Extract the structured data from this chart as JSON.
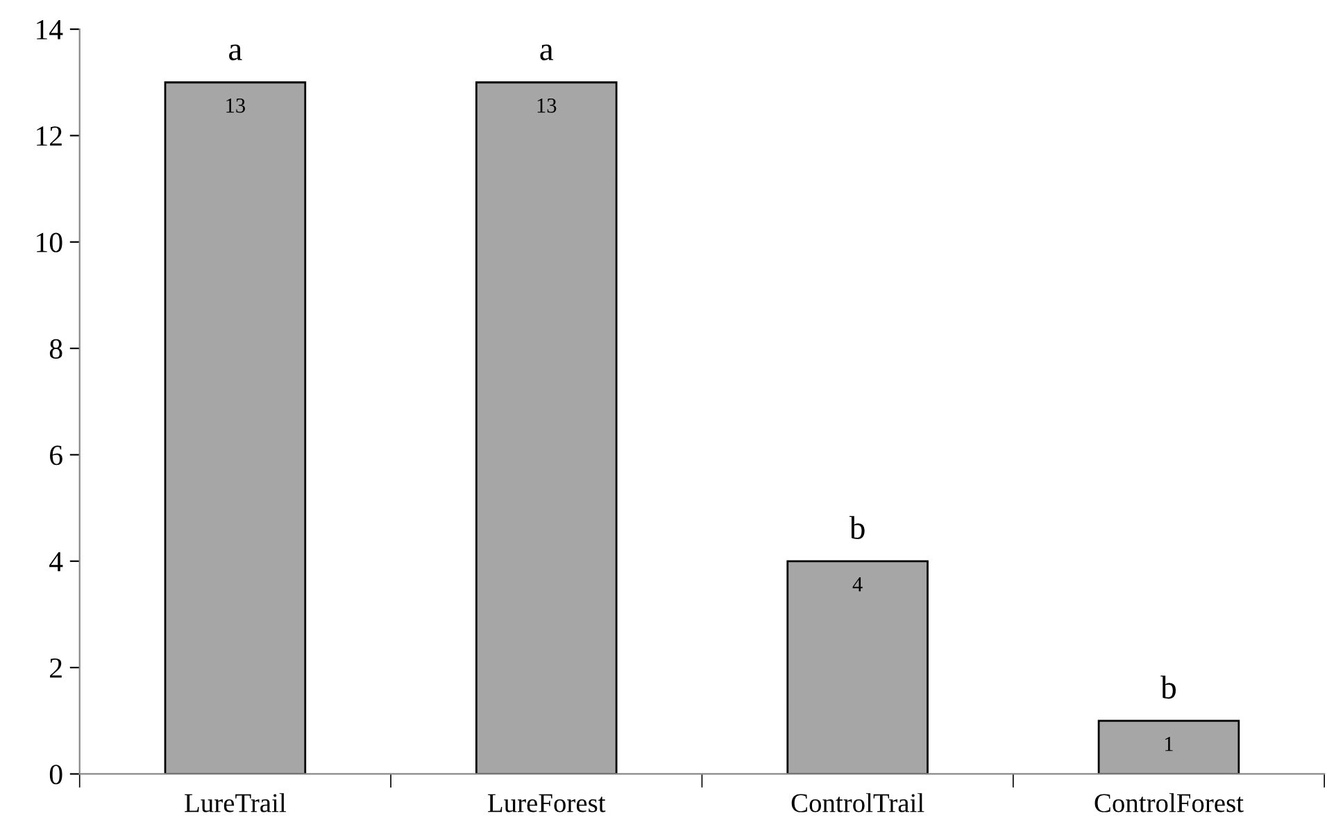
{
  "chart_data": {
    "type": "bar",
    "categories": [
      "LureTrail",
      "LureForest",
      "ControlTrail",
      "ControlForest"
    ],
    "values": [
      13,
      13,
      4,
      1
    ],
    "color": "#a6a6a6",
    "ylim": [
      0,
      14
    ],
    "yticks": [
      0,
      2,
      4,
      6,
      8,
      10,
      12,
      14
    ],
    "data_labels": true,
    "grid": false,
    "legend": false,
    "annotations": [
      {
        "text": "a",
        "x": "LureTrail",
        "y": 13
      },
      {
        "text": "a",
        "x": "LureForest",
        "y": 13
      },
      {
        "text": "b",
        "x": "ControlTrail",
        "y": 4
      },
      {
        "text": "b",
        "x": "ControlForest",
        "y": 1
      }
    ]
  }
}
